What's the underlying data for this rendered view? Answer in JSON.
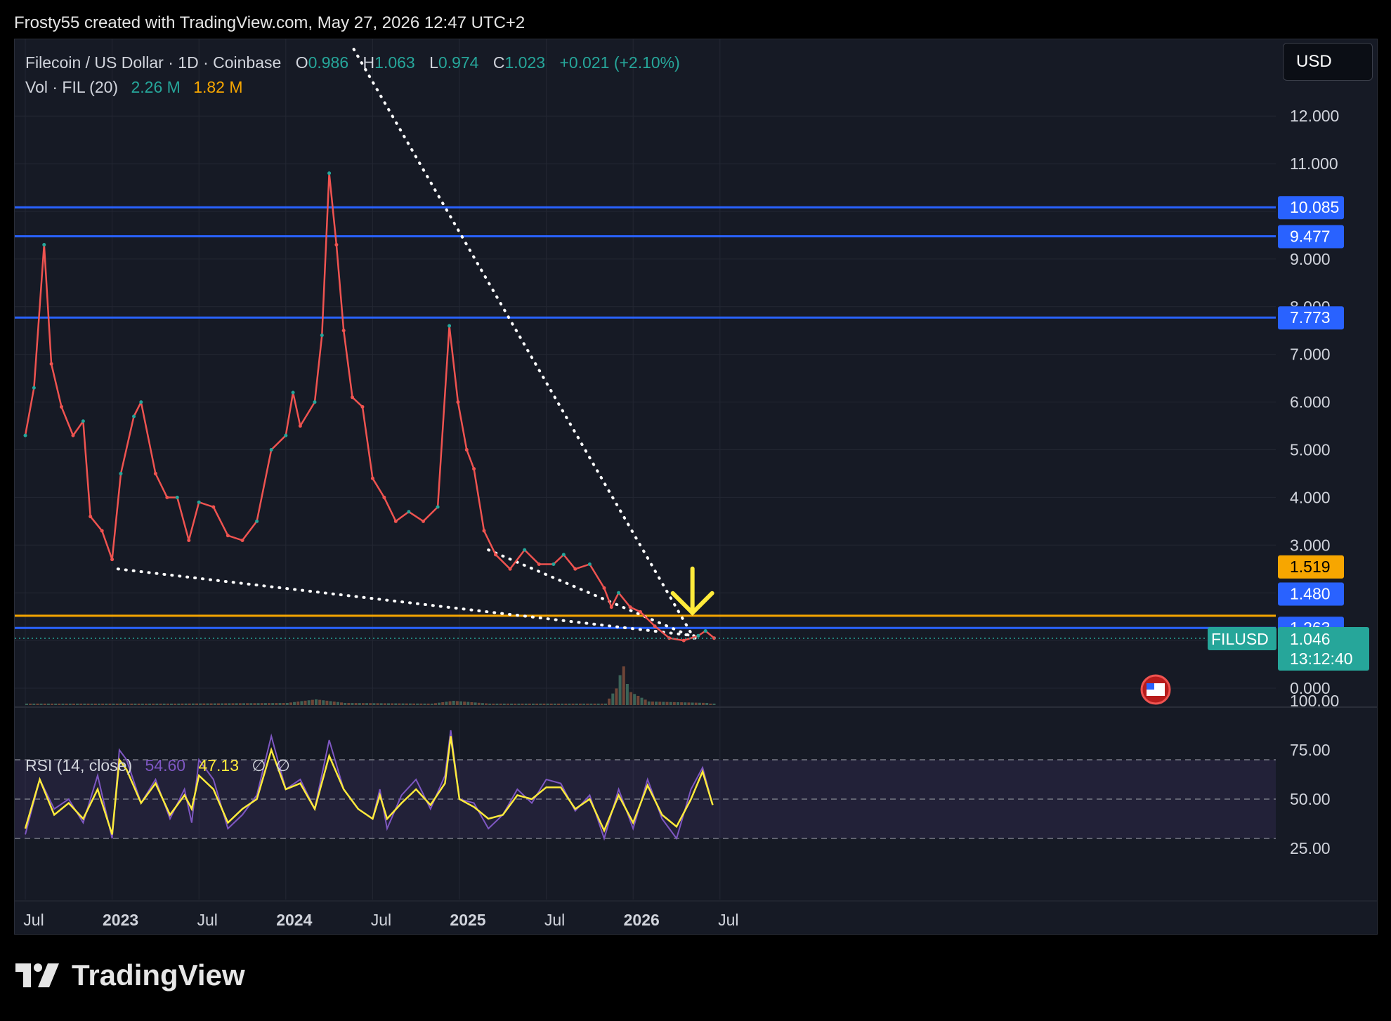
{
  "header_text": "Frosty55 created with TradingView.com, May 27, 2026 12:47 UTC+2",
  "legend": {
    "symbol": "Filecoin / US Dollar · 1D · Coinbase",
    "o_label": "O",
    "o_val": "0.986",
    "h_label": "H",
    "h_val": "1.063",
    "l_label": "L",
    "l_val": "0.974",
    "c_label": "C",
    "c_val": "1.023",
    "change": "+0.021 (+2.10%)",
    "vol_label": "Vol · FIL (20)",
    "vol_val1": "2.26 M",
    "vol_val2": "1.82 M"
  },
  "currency_button": "USD",
  "rsi_legend": {
    "label": "RSI (14, close)",
    "val1": "54.60",
    "val2": "47.13",
    "sym1": "∅",
    "sym2": "∅"
  },
  "footer_brand": "TradingView",
  "colors": {
    "up": "#26a69a",
    "down": "#ef5350",
    "hline": "#2962ff",
    "orange": "#f7a600",
    "rsi": "#7e57c2",
    "rsi_ma": "#ffeb3b",
    "arrow": "#ffeb3b"
  },
  "chart_data": {
    "type": "line",
    "symbol": "FILUSD",
    "price_axis_ticks": [
      "12.000",
      "11.000",
      "9.000",
      "8.000",
      "7.000",
      "6.000",
      "5.000",
      "4.000",
      "3.000",
      "0.000"
    ],
    "price_labels": [
      {
        "text": "10.085",
        "value": 10.085,
        "color": "#2962ff"
      },
      {
        "text": "9.477",
        "value": 9.477,
        "color": "#2962ff"
      },
      {
        "text": "7.773",
        "value": 7.773,
        "color": "#2962ff"
      },
      {
        "text": "1.519",
        "value": 1.519,
        "color": "#f7a600"
      },
      {
        "text": "1.480",
        "value": 1.48,
        "color": "#2962ff"
      },
      {
        "text": "1.263",
        "value": 1.263,
        "color": "#2962ff"
      }
    ],
    "last_price": {
      "symbol": "FILUSD",
      "price": "1.046",
      "countdown": "13:12:40",
      "value": 1.046
    },
    "horizontal_lines": [
      10.085,
      9.477,
      7.773,
      1.519,
      1.263
    ],
    "x_ticks": [
      {
        "text": "Jul",
        "t": 0,
        "bold": false
      },
      {
        "text": "2023",
        "t": 6,
        "bold": true
      },
      {
        "text": "Jul",
        "t": 12,
        "bold": false
      },
      {
        "text": "2024",
        "t": 18,
        "bold": true
      },
      {
        "text": "Jul",
        "t": 24,
        "bold": false
      },
      {
        "text": "2025",
        "t": 30,
        "bold": true
      },
      {
        "text": "Jul",
        "t": 36,
        "bold": false
      },
      {
        "text": "2026",
        "t": 42,
        "bold": true
      },
      {
        "text": "Jul",
        "t": 48,
        "bold": false
      }
    ],
    "price_series": [
      [
        0,
        5.3
      ],
      [
        0.6,
        6.3
      ],
      [
        1.3,
        9.3
      ],
      [
        1.8,
        6.8
      ],
      [
        2.5,
        5.9
      ],
      [
        3.3,
        5.3
      ],
      [
        4,
        5.6
      ],
      [
        4.5,
        3.6
      ],
      [
        5.3,
        3.3
      ],
      [
        6,
        2.7
      ],
      [
        6.6,
        4.5
      ],
      [
        7.5,
        5.7
      ],
      [
        8,
        6.0
      ],
      [
        9,
        4.5
      ],
      [
        9.8,
        4.0
      ],
      [
        10.5,
        4.0
      ],
      [
        11.3,
        3.1
      ],
      [
        12,
        3.9
      ],
      [
        13,
        3.8
      ],
      [
        14,
        3.2
      ],
      [
        15,
        3.1
      ],
      [
        16,
        3.5
      ],
      [
        17,
        5.0
      ],
      [
        18,
        5.3
      ],
      [
        18.5,
        6.2
      ],
      [
        19,
        5.5
      ],
      [
        20,
        6.0
      ],
      [
        20.5,
        7.4
      ],
      [
        21,
        10.8
      ],
      [
        21.5,
        9.3
      ],
      [
        22,
        7.5
      ],
      [
        22.6,
        6.1
      ],
      [
        23.3,
        5.9
      ],
      [
        24,
        4.4
      ],
      [
        24.8,
        4.0
      ],
      [
        25.6,
        3.5
      ],
      [
        26.5,
        3.7
      ],
      [
        27.5,
        3.5
      ],
      [
        28.5,
        3.8
      ],
      [
        29.3,
        7.6
      ],
      [
        29.9,
        6.0
      ],
      [
        30.5,
        5.0
      ],
      [
        31,
        4.6
      ],
      [
        31.7,
        3.3
      ],
      [
        32.5,
        2.8
      ],
      [
        33.5,
        2.5
      ],
      [
        34.5,
        2.9
      ],
      [
        35.5,
        2.6
      ],
      [
        36.5,
        2.6
      ],
      [
        37.2,
        2.8
      ],
      [
        38,
        2.5
      ],
      [
        39,
        2.6
      ],
      [
        40,
        2.1
      ],
      [
        40.5,
        1.7
      ],
      [
        41,
        2.0
      ],
      [
        41.8,
        1.7
      ],
      [
        42.5,
        1.6
      ],
      [
        43.5,
        1.3
      ],
      [
        44.5,
        1.05
      ],
      [
        45.5,
        1.0
      ],
      [
        46.5,
        1.1
      ],
      [
        47,
        1.2
      ],
      [
        47.6,
        1.05
      ]
    ],
    "volume_series": [
      [
        0,
        0.02
      ],
      [
        5,
        0.02
      ],
      [
        10,
        0.02
      ],
      [
        18,
        0.03
      ],
      [
        20,
        0.08
      ],
      [
        22,
        0.03
      ],
      [
        28,
        0.02
      ],
      [
        29.5,
        0.06
      ],
      [
        32,
        0.02
      ],
      [
        40,
        0.02
      ],
      [
        40.8,
        0.25
      ],
      [
        41.2,
        0.6
      ],
      [
        41.6,
        0.2
      ],
      [
        43,
        0.05
      ],
      [
        47,
        0.03
      ]
    ],
    "rsi_axis_ticks": [
      "100.00",
      "75.00",
      "50.00",
      "25.00"
    ],
    "rsi_series": [
      [
        0,
        32
      ],
      [
        1,
        60
      ],
      [
        2,
        45
      ],
      [
        3,
        50
      ],
      [
        4,
        38
      ],
      [
        5,
        62
      ],
      [
        6,
        30
      ],
      [
        6.5,
        75
      ],
      [
        7,
        70
      ],
      [
        8,
        48
      ],
      [
        9,
        60
      ],
      [
        10,
        40
      ],
      [
        11,
        55
      ],
      [
        11.5,
        38
      ],
      [
        12,
        70
      ],
      [
        13,
        60
      ],
      [
        14,
        35
      ],
      [
        15,
        42
      ],
      [
        16,
        52
      ],
      [
        17,
        82
      ],
      [
        18,
        55
      ],
      [
        19,
        60
      ],
      [
        20,
        45
      ],
      [
        21,
        80
      ],
      [
        22,
        55
      ],
      [
        23,
        45
      ],
      [
        24,
        40
      ],
      [
        24.5,
        55
      ],
      [
        25,
        35
      ],
      [
        26,
        52
      ],
      [
        27,
        60
      ],
      [
        28,
        45
      ],
      [
        29,
        62
      ],
      [
        29.4,
        85
      ],
      [
        30,
        50
      ],
      [
        31,
        48
      ],
      [
        32,
        35
      ],
      [
        33,
        42
      ],
      [
        34,
        55
      ],
      [
        35,
        48
      ],
      [
        36,
        60
      ],
      [
        37,
        58
      ],
      [
        38,
        44
      ],
      [
        39,
        52
      ],
      [
        40,
        30
      ],
      [
        41,
        55
      ],
      [
        42,
        35
      ],
      [
        43,
        60
      ],
      [
        44,
        40
      ],
      [
        45,
        30
      ],
      [
        46,
        55
      ],
      [
        46.8,
        66
      ],
      [
        47.5,
        47
      ]
    ],
    "rsi_ma_series": [
      [
        0,
        35
      ],
      [
        1,
        60
      ],
      [
        2,
        42
      ],
      [
        3,
        48
      ],
      [
        4,
        40
      ],
      [
        5,
        55
      ],
      [
        6,
        32
      ],
      [
        6.5,
        70
      ],
      [
        7,
        65
      ],
      [
        8,
        48
      ],
      [
        9,
        58
      ],
      [
        10,
        42
      ],
      [
        11,
        52
      ],
      [
        11.5,
        45
      ],
      [
        12,
        62
      ],
      [
        13,
        55
      ],
      [
        14,
        38
      ],
      [
        15,
        45
      ],
      [
        16,
        50
      ],
      [
        17,
        75
      ],
      [
        18,
        55
      ],
      [
        19,
        58
      ],
      [
        20,
        45
      ],
      [
        21,
        72
      ],
      [
        22,
        55
      ],
      [
        23,
        45
      ],
      [
        24,
        40
      ],
      [
        24.5,
        52
      ],
      [
        25,
        40
      ],
      [
        26,
        48
      ],
      [
        27,
        55
      ],
      [
        28,
        47
      ],
      [
        29,
        58
      ],
      [
        29.4,
        82
      ],
      [
        30,
        50
      ],
      [
        31,
        46
      ],
      [
        32,
        40
      ],
      [
        33,
        42
      ],
      [
        34,
        52
      ],
      [
        35,
        50
      ],
      [
        36,
        56
      ],
      [
        37,
        56
      ],
      [
        38,
        45
      ],
      [
        39,
        50
      ],
      [
        40,
        34
      ],
      [
        41,
        52
      ],
      [
        42,
        38
      ],
      [
        43,
        57
      ],
      [
        44,
        42
      ],
      [
        45,
        36
      ],
      [
        46,
        50
      ],
      [
        46.8,
        64
      ],
      [
        47.5,
        47
      ]
    ],
    "rsi_levels": [
      70,
      50,
      30
    ]
  }
}
